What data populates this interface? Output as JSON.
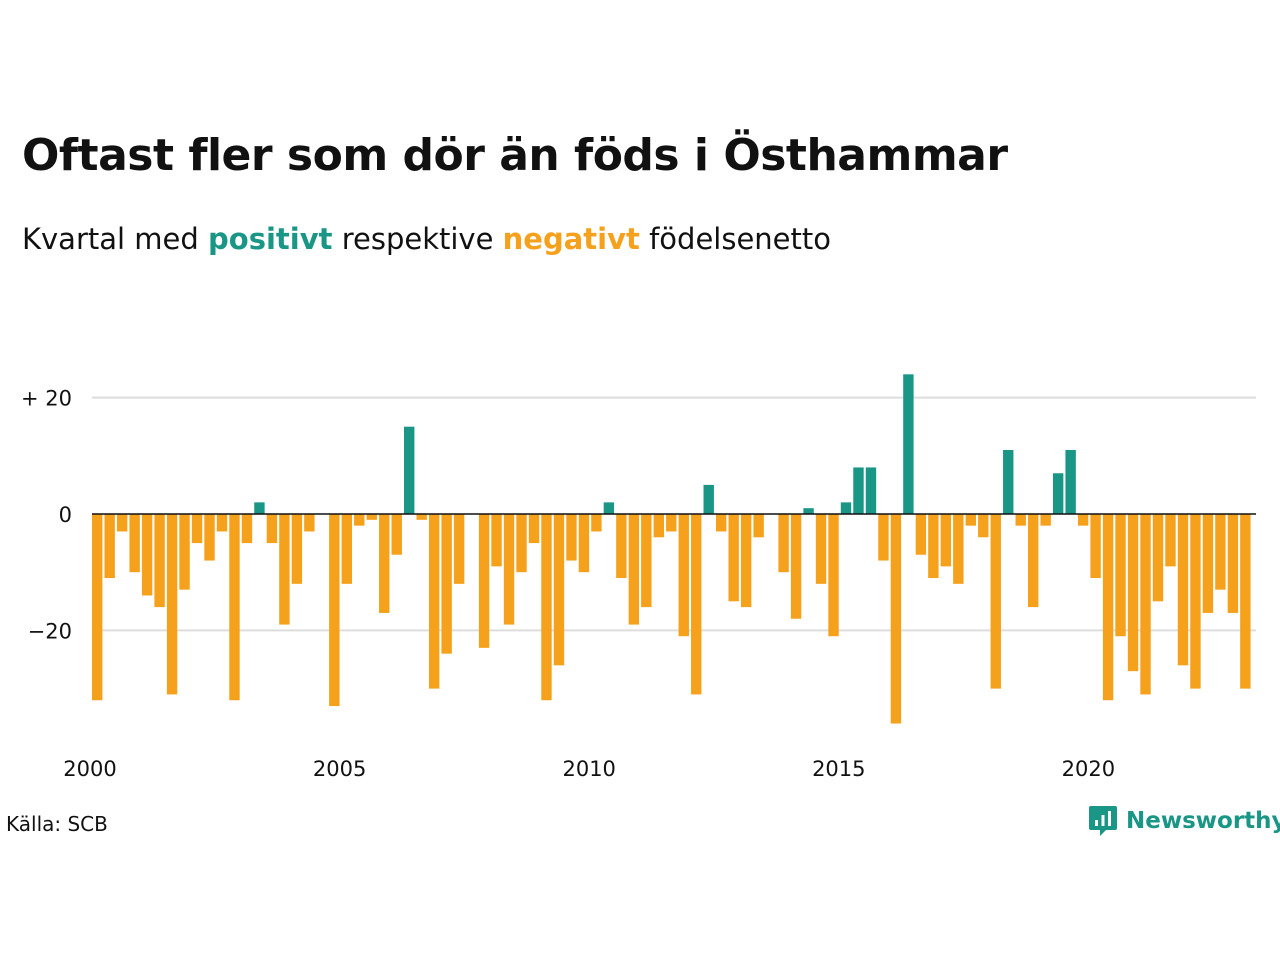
{
  "title": "Oftast fler som dör än föds i Östhammar",
  "subtitle": {
    "prefix": "Kvartal med",
    "positive_word": "positivt",
    "middle": "respektive",
    "negative_word": "negativt",
    "suffix": "födelsenetto"
  },
  "source": "Källa: SCB",
  "brand": "Newsworthy",
  "colors": {
    "positive": "#1a9686",
    "negative": "#f5a11c",
    "grid": "#dddddd",
    "axis": "#111111"
  },
  "chart_data": {
    "type": "bar",
    "x_start": "2000 Q1",
    "x_ticks": [
      "2000",
      "2005",
      "2010",
      "2015",
      "2020"
    ],
    "y_ticks": [
      {
        "value": 20,
        "label": "+ 20"
      },
      {
        "value": 0,
        "label": "0"
      },
      {
        "value": -20,
        "label": "−20"
      }
    ],
    "ylim": [
      -38,
      26
    ],
    "grid": true,
    "values": [
      -32,
      -11,
      -3,
      -10,
      -14,
      -16,
      -31,
      -13,
      -5,
      -8,
      -3,
      -32,
      -5,
      2,
      -5,
      -19,
      -12,
      -3,
      0,
      -33,
      -12,
      -2,
      -1,
      -17,
      -7,
      15,
      -1,
      -30,
      -24,
      -12,
      0,
      -23,
      -9,
      -19,
      -10,
      -5,
      -32,
      -26,
      -8,
      -10,
      -3,
      2,
      -11,
      -19,
      -16,
      -4,
      -3,
      -21,
      -31,
      5,
      -3,
      -15,
      -16,
      -4,
      0,
      -10,
      -18,
      1,
      -12,
      -21,
      2,
      8,
      8,
      -8,
      -36,
      24,
      -7,
      -11,
      -9,
      -12,
      -2,
      -4,
      -30,
      11,
      -2,
      -16,
      -2,
      7,
      11,
      -2,
      -11,
      -32,
      -21,
      -27,
      -31,
      -15,
      -9,
      -26,
      -30,
      -17,
      -13,
      -17,
      -30
    ]
  }
}
